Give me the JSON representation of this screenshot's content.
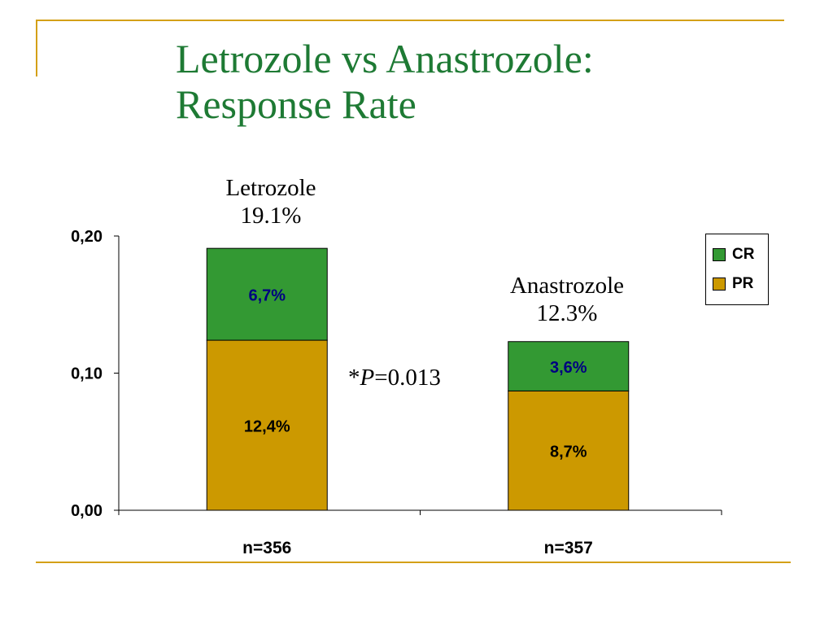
{
  "slide": {
    "title_line1": "Letrozole vs Anastrozole:",
    "title_line2": "Response Rate",
    "pvalue_prefix": "*",
    "pvalue_italic": "P",
    "pvalue_suffix": "=0.013"
  },
  "chart_data": {
    "type": "bar",
    "stacked": true,
    "categories": [
      "n=356",
      "n=357"
    ],
    "ylim": [
      0,
      0.2
    ],
    "yticks": [
      "0,00",
      "0,10",
      "0,20"
    ],
    "ytick_values": [
      0,
      0.1,
      0.2
    ],
    "grid": false,
    "legend_position": "top-right",
    "series": [
      {
        "name": "PR",
        "color": "#cc9900",
        "values": [
          0.124,
          0.087
        ],
        "labels": [
          "12,4%",
          "8,7%"
        ],
        "label_color": "#000000"
      },
      {
        "name": "CR",
        "color": "#339933",
        "values": [
          0.067,
          0.036
        ],
        "labels": [
          "6,7%",
          "3,6%"
        ],
        "label_color": "#000080"
      }
    ],
    "bar_callouts": [
      {
        "name": "Letrozole",
        "value": "19.1%"
      },
      {
        "name": "Anastrozole",
        "value": "12.3%"
      }
    ],
    "legend": [
      {
        "name": "CR",
        "color": "#339933"
      },
      {
        "name": "PR",
        "color": "#cc9900"
      }
    ]
  }
}
